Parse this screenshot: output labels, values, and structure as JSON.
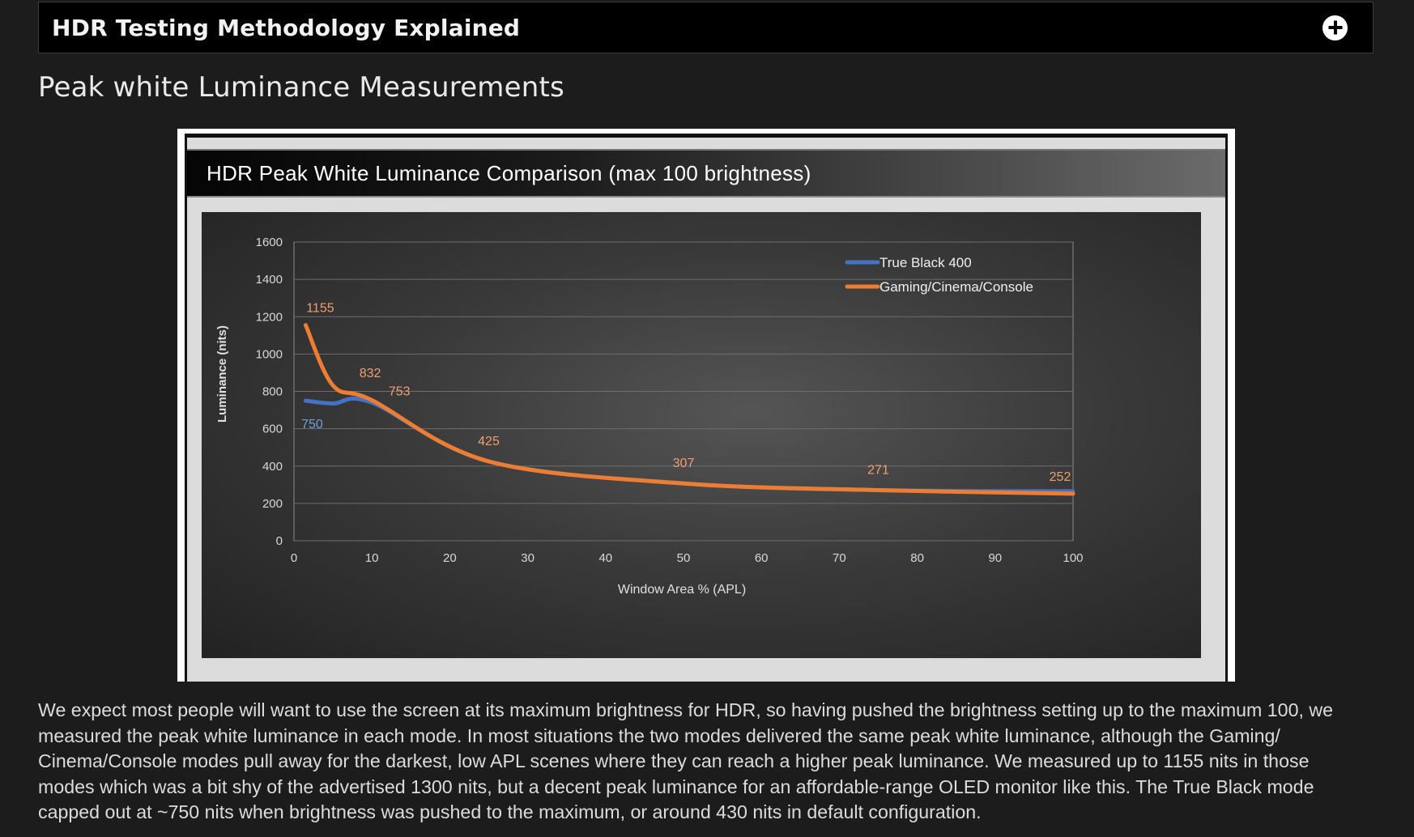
{
  "accordion": {
    "title": "HDR Testing Methodology Explained",
    "icon": "plus-circle-icon"
  },
  "section": {
    "heading": "Peak white Luminance Measurements"
  },
  "chart_data": {
    "type": "line",
    "title": "HDR Peak White Luminance Comparison (max 100 brightness)",
    "xlabel": "Window Area % (APL)",
    "ylabel": "Luminance (nits)",
    "xlim": [
      0,
      100
    ],
    "ylim": [
      0,
      1600
    ],
    "xticks": [
      0,
      10,
      20,
      30,
      40,
      50,
      60,
      70,
      80,
      90,
      100
    ],
    "yticks": [
      0,
      200,
      400,
      600,
      800,
      1000,
      1200,
      1400,
      1600
    ],
    "grid": true,
    "legend": "top-right",
    "series": [
      {
        "name": "True Black 400",
        "color": "#4472c4",
        "x": [
          1.5,
          5,
          10,
          25,
          50,
          75,
          100
        ],
        "y": [
          750,
          735,
          740,
          425,
          307,
          271,
          265
        ]
      },
      {
        "name": "Gaming/Cinema/Console",
        "color": "#ed7d31",
        "x": [
          1.5,
          5,
          10,
          25,
          50,
          75,
          100
        ],
        "y": [
          1155,
          832,
          753,
          425,
          307,
          271,
          252
        ]
      }
    ],
    "data_labels": [
      {
        "text": "1155",
        "x": 1.5,
        "y": 1155,
        "series": 1
      },
      {
        "text": "832",
        "x": 5,
        "y": 832,
        "series": 1
      },
      {
        "text": "753",
        "x": 10,
        "y": 753,
        "series": 1
      },
      {
        "text": "750",
        "x": 1.5,
        "y": 750,
        "series": 0
      },
      {
        "text": "425",
        "x": 25,
        "y": 425,
        "series": 1
      },
      {
        "text": "307",
        "x": 50,
        "y": 307,
        "series": 1
      },
      {
        "text": "271",
        "x": 75,
        "y": 271,
        "series": 1
      },
      {
        "text": "252",
        "x": 100,
        "y": 252,
        "series": 1
      }
    ]
  },
  "body": {
    "paragraph": "We expect most people will want to use the screen at its maximum brightness for HDR, so having pushed the brightness setting up to the maximum 100, we measured the peak white luminance in each mode. In most situations the two modes delivered the same peak white luminance, although the Gaming/ Cinema/Console modes pull away for the darkest, low APL scenes where they can reach a higher peak luminance. We measured up to 1155 nits in those modes which was a bit shy of the advertised 1300 nits, but a decent peak luminance for an affordable-range OLED monitor like this. The True Black mode capped out at ~750 nits when brightness was pushed to the maximum, or around 430 nits in default configuration."
  }
}
